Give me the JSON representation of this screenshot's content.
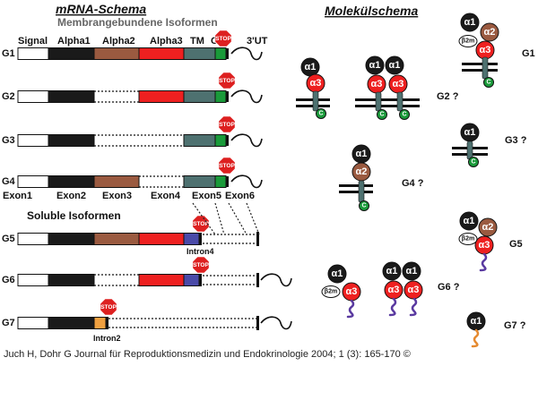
{
  "titles": {
    "mrna": "mRNA-Schema",
    "membrane": "Membrangebundene Isoformen",
    "soluble": "Soluble Isoformen",
    "molecule": "Molekülschema"
  },
  "column_headers": [
    "Signal",
    "Alpha1",
    "Alpha2",
    "Alpha3",
    "TM",
    "C",
    "3'UT"
  ],
  "exon_labels": [
    "Exon1",
    "Exon2",
    "Exon3",
    "Exon4",
    "Exon5",
    "Exon6"
  ],
  "isoforms": [
    "G1",
    "G2",
    "G3",
    "G4",
    "G5",
    "G6",
    "G7"
  ],
  "stop_label": "STOP",
  "intron_labels": {
    "g5": "Intron4",
    "g7": "Intron2"
  },
  "domain_labels": {
    "a1": "α1",
    "a2": "α2",
    "a3": "α3",
    "b2m": "β2m",
    "c": "C"
  },
  "molecule_labels": {
    "g1": "G1",
    "g2": "G2 ?",
    "g3": "G3 ?",
    "g4": "G4 ?",
    "g5": "G5",
    "g6": "G6 ?",
    "g7": "G7 ?"
  },
  "colors": {
    "signal": "#ffffff",
    "alpha1": "#1a1a1a",
    "alpha2": "#9a5a40",
    "alpha3": "#ee2020",
    "tm": "#4e7170",
    "cyt": "#1a9a3a",
    "intron4": "#4a4aa8",
    "intron2": "#f0a040",
    "stop": "#dd2020",
    "b2m": "#ffffff",
    "tail": "#5a3aa0",
    "tail_g7": "#e58a30"
  },
  "caption": "Juch H, Dohr G Journal für Reproduktionsmedizin und Endokrinologie 2004; 1 (3): 165-170 ©"
}
